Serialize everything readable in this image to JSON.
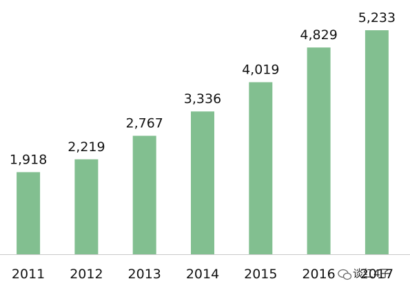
{
  "chart_data": {
    "type": "bar",
    "title": "",
    "xlabel": "",
    "ylabel": "",
    "categories": [
      "2011",
      "2012",
      "2013",
      "2014",
      "2015",
      "2016",
      "2017"
    ],
    "values": [
      1918,
      2219,
      2767,
      3336,
      4019,
      4829,
      5233
    ],
    "value_labels": [
      "1,918",
      "2,219",
      "2,767",
      "3,336",
      "4,019",
      "4,829",
      "5,233"
    ],
    "ylim": [
      0,
      5650
    ],
    "grid": false,
    "legend": "none",
    "bar_color": "#82bf90",
    "axis_color": "#c8c8c8"
  },
  "watermark": {
    "text": "谈红4子",
    "icon": "wechat-icon"
  }
}
